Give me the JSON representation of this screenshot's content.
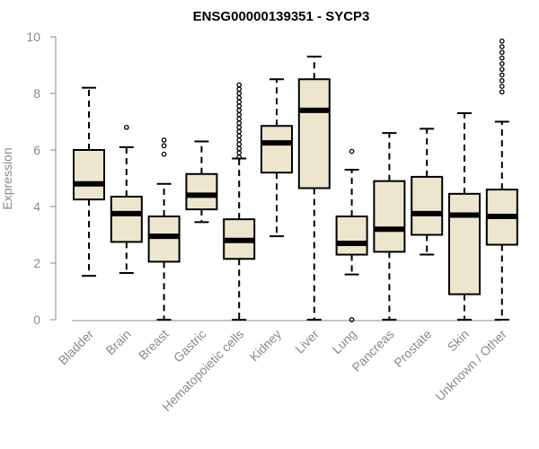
{
  "chart_data": {
    "type": "boxplot",
    "title": "ENSG00000139351 - SYCP3",
    "xlabel": "",
    "ylabel": "Expression",
    "ylim": [
      0,
      10
    ],
    "yticks": [
      0,
      2,
      4,
      6,
      8,
      10
    ],
    "categories": [
      "Bladder",
      "Brain",
      "Breast",
      "Gastric",
      "Hematopoietic cells",
      "Kidney",
      "Liver",
      "Lung",
      "Pancreas",
      "Prostate",
      "Skin",
      "Unknown / Other"
    ],
    "boxes": [
      {
        "min": 1.55,
        "q1": 4.25,
        "median": 4.8,
        "q3": 6.0,
        "max": 8.2,
        "outliers": []
      },
      {
        "min": 1.65,
        "q1": 2.75,
        "median": 3.75,
        "q3": 4.35,
        "max": 6.1,
        "outliers": [
          6.8
        ]
      },
      {
        "min": 0.0,
        "q1": 2.05,
        "median": 2.95,
        "q3": 3.65,
        "max": 4.8,
        "outliers": [
          5.85,
          6.15,
          6.35
        ]
      },
      {
        "min": 3.45,
        "q1": 3.9,
        "median": 4.4,
        "q3": 5.15,
        "max": 6.3,
        "outliers": []
      },
      {
        "min": 0.0,
        "q1": 2.15,
        "median": 2.8,
        "q3": 3.55,
        "max": 5.7,
        "outliers": [
          5.75,
          5.9,
          6.05,
          6.2,
          6.35,
          6.5,
          6.65,
          6.8,
          6.95,
          7.1,
          7.25,
          7.4,
          7.55,
          7.7,
          7.85,
          8.0,
          8.15,
          8.3
        ]
      },
      {
        "min": 2.95,
        "q1": 5.2,
        "median": 6.25,
        "q3": 6.85,
        "max": 8.5,
        "outliers": []
      },
      {
        "min": 0.0,
        "q1": 4.65,
        "median": 7.4,
        "q3": 8.5,
        "max": 9.3,
        "outliers": []
      },
      {
        "min": 1.6,
        "q1": 2.3,
        "median": 2.7,
        "q3": 3.65,
        "max": 5.3,
        "outliers": [
          5.95,
          0.0
        ]
      },
      {
        "min": 0.0,
        "q1": 2.4,
        "median": 3.2,
        "q3": 4.9,
        "max": 6.6,
        "outliers": []
      },
      {
        "min": 2.3,
        "q1": 3.0,
        "median": 3.75,
        "q3": 5.05,
        "max": 6.75,
        "outliers": []
      },
      {
        "min": 0.0,
        "q1": 0.9,
        "median": 3.7,
        "q3": 4.45,
        "max": 7.3,
        "outliers": []
      },
      {
        "min": 0.0,
        "q1": 2.65,
        "median": 3.65,
        "q3": 4.6,
        "max": 7.0,
        "outliers": [
          8.05,
          8.25,
          8.45,
          8.65,
          8.85,
          9.05,
          9.25,
          9.45,
          9.65,
          9.85
        ]
      }
    ],
    "box_fill": "#ede6ce",
    "box_stroke": "#000000",
    "axis_color": "#8a8a8a"
  }
}
